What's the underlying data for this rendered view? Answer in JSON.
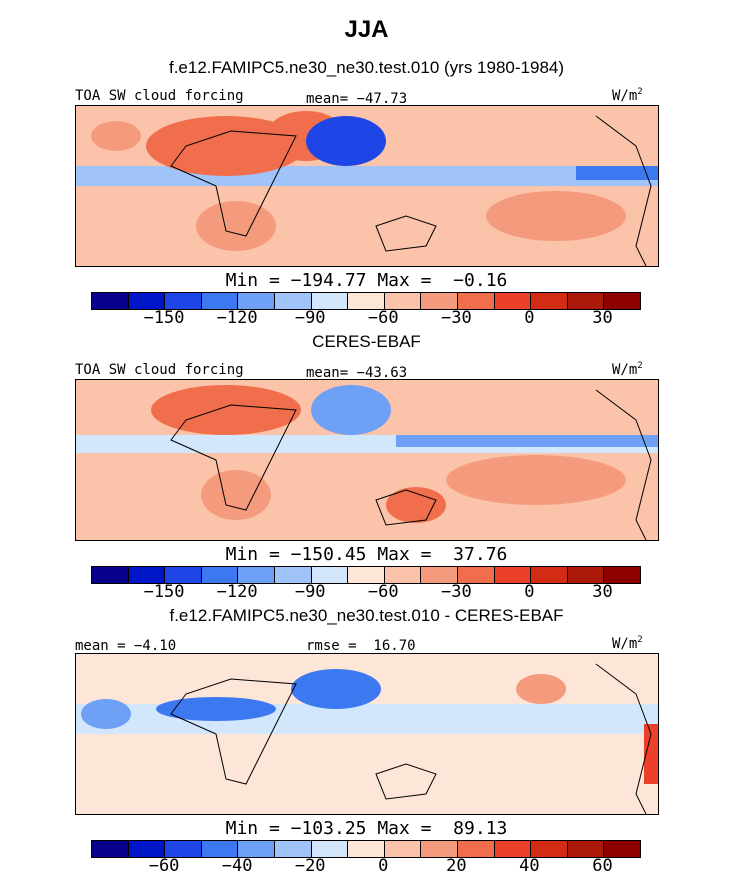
{
  "header": {
    "title": "JJA"
  },
  "palette": [
    "#08008c",
    "#0014c8",
    "#1e46e6",
    "#3c78f0",
    "#6ea0f5",
    "#a0c3fa",
    "#d2e6fc",
    "#fde6d7",
    "#fac3aa",
    "#f59b7d",
    "#f06e4b",
    "#eb4128",
    "#d22d14",
    "#aa190a",
    "#8c0000"
  ],
  "panels": [
    {
      "title": "f.e12.FAMIPC5.ne30_ne30.test.010 (yrs 1980-1984)",
      "left_label": "TOA SW cloud forcing",
      "center_label": "mean= −47.73",
      "units_label": "W/m",
      "units_sup": "2",
      "min_max": "Min = −194.77 Max =  −0.16",
      "ticks": [
        "−150",
        "−120",
        "−90",
        "−60",
        "−30",
        "0",
        "30"
      ]
    },
    {
      "title": "CERES-EBAF",
      "left_label": "TOA SW cloud forcing",
      "center_label": "mean= −43.63",
      "units_label": "W/m",
      "units_sup": "2",
      "min_max": "Min = −150.45 Max =  37.76",
      "ticks": [
        "−150",
        "−120",
        "−90",
        "−60",
        "−30",
        "0",
        "30"
      ]
    },
    {
      "title": "f.e12.FAMIPC5.ne30_ne30.test.010 - CERES-EBAF",
      "left_label": "mean = −4.10",
      "center_label": "rmse =  16.70",
      "units_label": "W/m",
      "units_sup": "2",
      "min_max": "Min = −103.25 Max =  89.13",
      "ticks": [
        "−60",
        "−40",
        "−20",
        "0",
        "20",
        "40",
        "60"
      ]
    }
  ]
}
